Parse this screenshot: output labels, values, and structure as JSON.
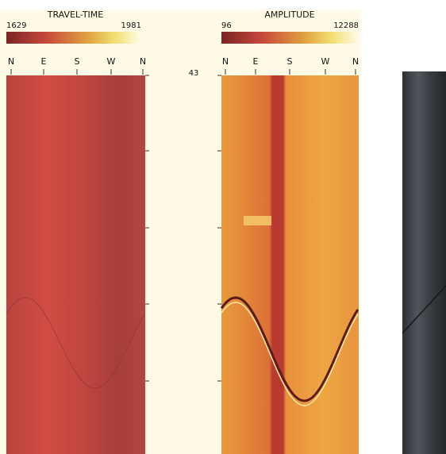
{
  "travel_time": {
    "title": "TRAVEL-TIME",
    "scale_min": 1629,
    "scale_max": 1981,
    "directions": [
      "N",
      "E",
      "S",
      "W",
      "N"
    ]
  },
  "depth_label": 43,
  "amplitude": {
    "title": "AMPLITUDE",
    "scale_min": 96,
    "scale_max": 12288,
    "directions": [
      "N",
      "E",
      "S",
      "W",
      "N"
    ]
  }
}
